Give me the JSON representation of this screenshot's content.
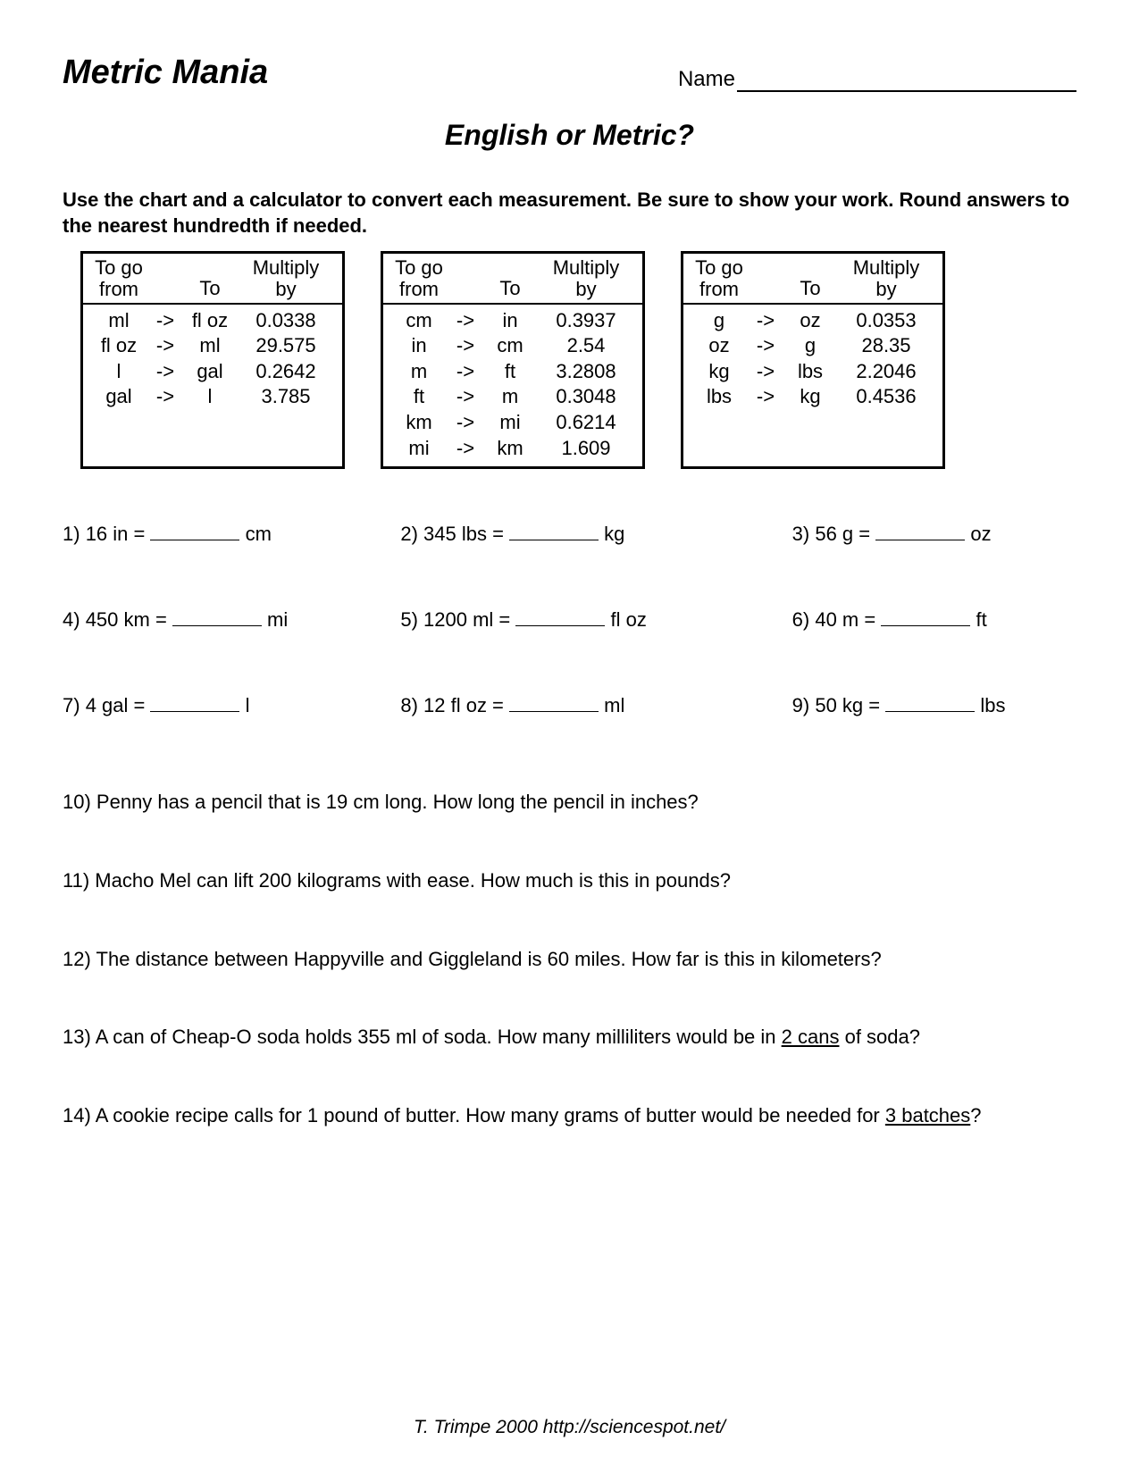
{
  "header": {
    "title": "Metric Mania",
    "name_label": "Name"
  },
  "subtitle": "English or Metric?",
  "instructions": "Use the chart and a calculator to convert each measurement.  Be sure to show your work.  Round answers to the nearest hundredth if needed.",
  "chart_headers": {
    "from": "To go from",
    "to": "To",
    "mult": "Multiply by"
  },
  "charts": [
    {
      "rows": [
        {
          "from": "ml",
          "arrow": "->",
          "to": "fl oz",
          "mult": "0.0338"
        },
        {
          "from": "fl oz",
          "arrow": "->",
          "to": "ml",
          "mult": "29.575"
        },
        {
          "from": "l",
          "arrow": "->",
          "to": "gal",
          "mult": "0.2642"
        },
        {
          "from": "gal",
          "arrow": "->",
          "to": "l",
          "mult": "3.785"
        }
      ]
    },
    {
      "rows": [
        {
          "from": "cm",
          "arrow": "->",
          "to": "in",
          "mult": "0.3937"
        },
        {
          "from": "in",
          "arrow": "->",
          "to": "cm",
          "mult": "2.54"
        },
        {
          "from": "m",
          "arrow": "->",
          "to": "ft",
          "mult": "3.2808"
        },
        {
          "from": "ft",
          "arrow": "->",
          "to": "m",
          "mult": "0.3048"
        },
        {
          "from": "km",
          "arrow": "->",
          "to": "mi",
          "mult": "0.6214"
        },
        {
          "from": "mi",
          "arrow": "->",
          "to": "km",
          "mult": "1.609"
        }
      ]
    },
    {
      "rows": [
        {
          "from": "g",
          "arrow": "->",
          "to": "oz",
          "mult": "0.0353"
        },
        {
          "from": "oz",
          "arrow": "->",
          "to": "g",
          "mult": "28.35"
        },
        {
          "from": "kg",
          "arrow": "->",
          "to": "lbs",
          "mult": "2.2046"
        },
        {
          "from": "lbs",
          "arrow": "->",
          "to": "kg",
          "mult": "0.4536"
        }
      ]
    }
  ],
  "problems": [
    {
      "n": "1)",
      "lhs": "16 in =",
      "unit": "cm"
    },
    {
      "n": "2)",
      "lhs": " 345 lbs  =",
      "unit": "kg"
    },
    {
      "n": "3)",
      "lhs": " 56 g   =",
      "unit": "oz"
    },
    {
      "n": "4)",
      "lhs": " 450 km  =",
      "unit": "mi"
    },
    {
      "n": "5)",
      "lhs": "1200 ml =",
      "unit": "fl oz"
    },
    {
      "n": "6)",
      "lhs": "40 m  =",
      "unit": "ft"
    },
    {
      "n": "7)",
      "lhs": "4 gal   =",
      "unit": "l"
    },
    {
      "n": "8)",
      "lhs": "12 fl oz  =",
      "unit": "ml"
    },
    {
      "n": "9)",
      "lhs": "50 kg  =",
      "unit": "lbs"
    }
  ],
  "word_problems": [
    {
      "n": "10)",
      "text": " Penny has a pencil that is 19 cm long.  How long the pencil in inches?"
    },
    {
      "n": "11)",
      "text": " Macho Mel can lift 200 kilograms with ease.  How much is this in pounds?"
    },
    {
      "n": "12)",
      "text": " The distance between Happyville and Giggleland is 60 miles.  How far is this in kilometers?"
    },
    {
      "n": "13)",
      "text_a": " A can of Cheap-O soda holds 355 ml of soda.  How many milliliters would be in ",
      "ul": "2 cans",
      "text_b": " of soda?"
    },
    {
      "n": "14)",
      "text_a": " A cookie recipe calls for 1 pound of butter.  How many grams of butter would be needed for ",
      "ul": "3  batches",
      "text_b": "?"
    }
  ],
  "footer": "T. Trimpe 2000  http://sciencespot.net/"
}
